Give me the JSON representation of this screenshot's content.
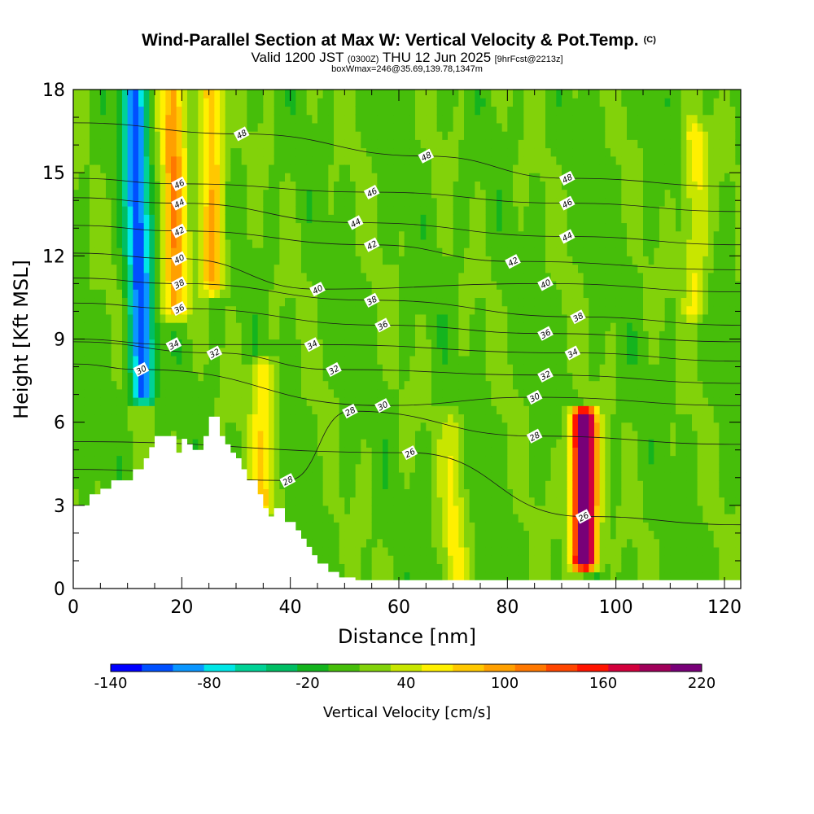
{
  "chart_data": {
    "type": "heatmap",
    "title": "Wind-Parallel Section at Max W: Vertical Velocity & Pot.Temp.",
    "title_mark": "(C)",
    "subtitle_main_a": "Valid 1200 JST",
    "subtitle_small_a": "(0300Z)",
    "subtitle_main_b": "THU 12 Jun 2025",
    "subtitle_small_b": "[9hrFcst@2213z]",
    "subtitle_line2": "boxWmax=246@35.69,139.78,1347m",
    "xlabel": "Distance [nm]",
    "ylabel": "Height [Kft MSL]",
    "xlim": [
      0,
      123
    ],
    "ylim": [
      0,
      18
    ],
    "x_ticks": [
      0,
      20,
      40,
      60,
      80,
      100,
      120
    ],
    "y_ticks": [
      0,
      3,
      6,
      9,
      12,
      15,
      18
    ],
    "colorbar": {
      "label": "Vertical Velocity [cm/s]",
      "tick_labels": [
        "-140",
        "-80",
        "-20",
        "40",
        "100",
        "160",
        "220"
      ],
      "tick_values": [
        -140,
        -80,
        -20,
        40,
        100,
        160,
        220
      ],
      "bounds": [
        -140,
        220
      ],
      "colors": [
        "#0000ff",
        "#0050ff",
        "#0a96ff",
        "#00e6e6",
        "#00d296",
        "#00be64",
        "#14b41e",
        "#46be0a",
        "#82d20a",
        "#c8e600",
        "#fff000",
        "#ffc800",
        "#ffa000",
        "#ff7800",
        "#ff4600",
        "#ff1400",
        "#d2003c",
        "#a0005a",
        "#780078"
      ]
    },
    "terrain": [
      [
        0,
        3.0
      ],
      [
        3,
        3.0
      ],
      [
        3,
        3.4
      ],
      [
        5,
        3.4
      ],
      [
        5,
        3.6
      ],
      [
        7,
        3.6
      ],
      [
        7,
        3.9
      ],
      [
        11,
        3.9
      ],
      [
        11,
        4.3
      ],
      [
        13,
        4.3
      ],
      [
        13,
        4.7
      ],
      [
        14,
        4.7
      ],
      [
        14,
        5.1
      ],
      [
        15,
        5.1
      ],
      [
        15,
        5.5
      ],
      [
        19,
        5.5
      ],
      [
        19,
        4.9
      ],
      [
        20,
        4.9
      ],
      [
        20,
        5.4
      ],
      [
        21,
        5.4
      ],
      [
        21,
        5.2
      ],
      [
        22,
        5.2
      ],
      [
        22,
        5.0
      ],
      [
        24,
        5.0
      ],
      [
        24,
        5.5
      ],
      [
        25,
        5.5
      ],
      [
        25,
        6.2
      ],
      [
        27,
        6.2
      ],
      [
        27,
        5.5
      ],
      [
        28,
        5.5
      ],
      [
        28,
        5.2
      ],
      [
        29,
        5.2
      ],
      [
        29,
        4.9
      ],
      [
        30,
        4.9
      ],
      [
        30,
        4.7
      ],
      [
        31,
        4.7
      ],
      [
        31,
        4.3
      ],
      [
        32,
        4.3
      ],
      [
        32,
        3.9
      ],
      [
        34,
        3.9
      ],
      [
        34,
        3.4
      ],
      [
        35,
        3.4
      ],
      [
        35,
        2.9
      ],
      [
        36,
        2.9
      ],
      [
        36,
        2.6
      ],
      [
        37,
        2.6
      ],
      [
        37,
        2.9
      ],
      [
        39,
        2.9
      ],
      [
        39,
        2.4
      ],
      [
        41,
        2.4
      ],
      [
        41,
        2.1
      ],
      [
        42,
        2.1
      ],
      [
        42,
        1.8
      ],
      [
        43,
        1.8
      ],
      [
        43,
        1.5
      ],
      [
        44,
        1.5
      ],
      [
        44,
        1.2
      ],
      [
        45,
        1.2
      ],
      [
        45,
        0.9
      ],
      [
        47,
        0.9
      ],
      [
        47,
        0.6
      ],
      [
        49,
        0.6
      ],
      [
        49,
        0.4
      ],
      [
        52,
        0.4
      ],
      [
        52,
        0.3
      ],
      [
        123,
        0.3
      ]
    ],
    "w_field_features": [
      {
        "kind": "updraft",
        "x": 94,
        "y0": 1.0,
        "y1": 6.2,
        "peak": 246
      },
      {
        "kind": "downdraft",
        "x": 13,
        "y0": 7.0,
        "y1": 18,
        "peak": -120
      },
      {
        "kind": "updraft",
        "x": 19,
        "y0": 10.0,
        "y1": 18,
        "peak": 90
      },
      {
        "kind": "updraft",
        "x": 26,
        "y0": 11.0,
        "y1": 18,
        "peak": 80
      },
      {
        "kind": "updraft",
        "x": 35,
        "y0": 3.0,
        "y1": 8.0,
        "peak": 60
      },
      {
        "kind": "updraft",
        "x": 115,
        "y0": 10.0,
        "y1": 16.5,
        "peak": 50
      },
      {
        "kind": "updraft",
        "x": 70,
        "y0": 0.5,
        "y1": 6.0,
        "peak": 40
      }
    ],
    "contour_labels": [
      {
        "text": "48",
        "x": 31,
        "y": 16.4
      },
      {
        "text": "48",
        "x": 65,
        "y": 15.6
      },
      {
        "text": "48",
        "x": 91,
        "y": 14.8
      },
      {
        "text": "46",
        "x": 19.5,
        "y": 14.6
      },
      {
        "text": "46",
        "x": 55,
        "y": 14.3
      },
      {
        "text": "46",
        "x": 91,
        "y": 13.9
      },
      {
        "text": "44",
        "x": 19.5,
        "y": 13.9
      },
      {
        "text": "44",
        "x": 52,
        "y": 13.2
      },
      {
        "text": "44",
        "x": 91,
        "y": 12.7
      },
      {
        "text": "42",
        "x": 19.5,
        "y": 12.9
      },
      {
        "text": "42",
        "x": 55,
        "y": 12.4
      },
      {
        "text": "42",
        "x": 81,
        "y": 11.8
      },
      {
        "text": "40",
        "x": 19.5,
        "y": 11.9
      },
      {
        "text": "40",
        "x": 45,
        "y": 10.8
      },
      {
        "text": "40",
        "x": 87,
        "y": 11.0
      },
      {
        "text": "38",
        "x": 19.5,
        "y": 11.0
      },
      {
        "text": "38",
        "x": 55,
        "y": 10.4
      },
      {
        "text": "38",
        "x": 93,
        "y": 9.8
      },
      {
        "text": "36",
        "x": 19.5,
        "y": 10.1
      },
      {
        "text": "36",
        "x": 57,
        "y": 9.5
      },
      {
        "text": "36",
        "x": 87,
        "y": 9.2
      },
      {
        "text": "34",
        "x": 18.5,
        "y": 8.8
      },
      {
        "text": "34",
        "x": 44,
        "y": 8.8
      },
      {
        "text": "34",
        "x": 92,
        "y": 8.5
      },
      {
        "text": "32",
        "x": 26,
        "y": 8.5
      },
      {
        "text": "32",
        "x": 48,
        "y": 7.9
      },
      {
        "text": "32",
        "x": 87,
        "y": 7.7
      },
      {
        "text": "30",
        "x": 12.5,
        "y": 7.9
      },
      {
        "text": "30",
        "x": 57,
        "y": 6.6
      },
      {
        "text": "30",
        "x": 85,
        "y": 6.9
      },
      {
        "text": "28",
        "x": 51,
        "y": 6.4
      },
      {
        "text": "28",
        "x": 85,
        "y": 5.5
      },
      {
        "text": "28",
        "x": 39.5,
        "y": 3.9
      },
      {
        "text": "26",
        "x": 62,
        "y": 4.9
      },
      {
        "text": "26",
        "x": 94,
        "y": 2.6
      }
    ]
  }
}
